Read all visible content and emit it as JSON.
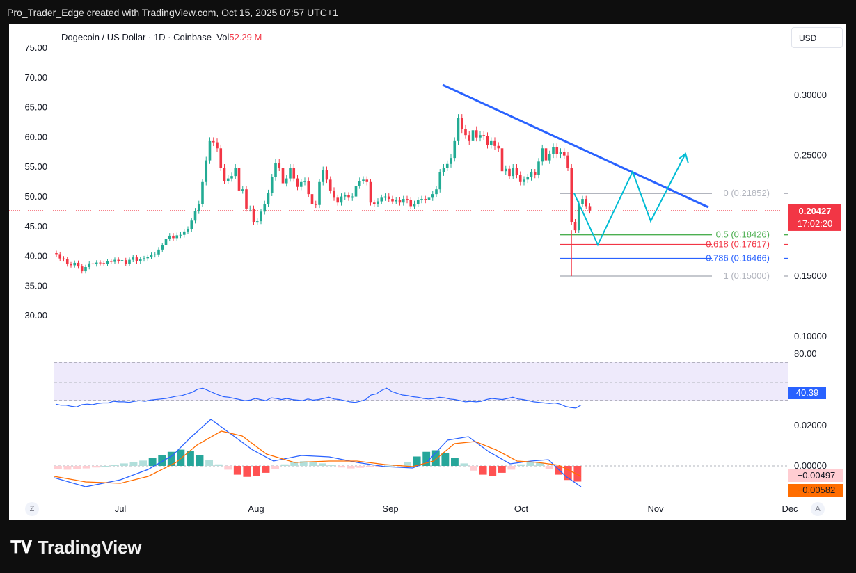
{
  "header": {
    "caption": "Pro_Trader_Edge created with TradingView.com, Oct 15, 2025 07:57 UTC+1"
  },
  "chart_title": {
    "symbol": "Dogecoin / US Dollar · 1D · Coinbase",
    "vol_label": "Vol",
    "vol_value": "52.29 M"
  },
  "currency_button": "USD",
  "left_axis": {
    "ticks": [
      "75.00",
      "70.00",
      "65.00",
      "60.00",
      "55.00",
      "50.00",
      "45.00",
      "40.00",
      "35.00",
      "30.00"
    ]
  },
  "right_axis": {
    "price_ticks": [
      "0.30000",
      "0.25000",
      "0.15000",
      "0.10000"
    ],
    "rsi_ticks": [
      "80.00"
    ],
    "macd_ticks": [
      "0.02000",
      "0.00000"
    ]
  },
  "time_axis": [
    "Jul",
    "Aug",
    "Sep",
    "Oct",
    "Nov",
    "Dec"
  ],
  "current_price": {
    "value": "0.20427",
    "countdown": "17:02:20"
  },
  "rsi_value": "40.39",
  "macd_values": [
    "−0.00497",
    "−0.00582"
  ],
  "fib_levels": [
    {
      "label": "0 (0.21852)",
      "value": 0.21852,
      "color": "#b2b5be"
    },
    {
      "label": "0.5 (0.18426)",
      "value": 0.18426,
      "color": "#4caf50"
    },
    {
      "label": "0.618 (0.17617)",
      "value": 0.17617,
      "color": "#f23645"
    },
    {
      "label": "0.786 (0.16466)",
      "value": 0.16466,
      "color": "#2962ff"
    },
    {
      "label": "1 (0.15000)",
      "value": 0.15,
      "color": "#b2b5be"
    }
  ],
  "colors": {
    "up": "#22ab94",
    "down": "#f23645",
    "trendline": "#2962ff",
    "projection": "#00bcd4",
    "rsi": "#2962ff",
    "macd_signal": "#ff6d00"
  },
  "icons": {
    "left_button": "Z",
    "right_button": "A",
    "brand": "TV"
  },
  "brand": "TradingView",
  "chart_data": [
    {
      "type": "candlestick",
      "title": "Dogecoin / US Dollar · 1D · Coinbase",
      "close": [
        0.1682,
        0.1646,
        0.164,
        0.1598,
        0.159,
        0.161,
        0.158,
        0.154,
        0.1575,
        0.1605,
        0.1598,
        0.1612,
        0.1608,
        0.16,
        0.1625,
        0.1618,
        0.1635,
        0.1625,
        0.1632,
        0.16,
        0.1635,
        0.1655,
        0.1622,
        0.164,
        0.1648,
        0.166,
        0.1675,
        0.168,
        0.172,
        0.1755,
        0.181,
        0.1835,
        0.1815,
        0.1838,
        0.1842,
        0.187,
        0.189,
        0.196,
        0.204,
        0.21,
        0.228,
        0.246,
        0.262,
        0.261,
        0.256,
        0.24,
        0.229,
        0.231,
        0.233,
        0.24,
        0.221,
        0.222,
        0.206,
        0.206,
        0.195,
        0.1955,
        0.2035,
        0.21,
        0.219,
        0.232,
        0.244,
        0.24,
        0.227,
        0.231,
        0.24,
        0.231,
        0.224,
        0.228,
        0.229,
        0.218,
        0.21,
        0.209,
        0.228,
        0.238,
        0.23,
        0.221,
        0.215,
        0.211,
        0.216,
        0.217,
        0.215,
        0.216,
        0.225,
        0.229,
        0.23,
        0.228,
        0.211,
        0.21,
        0.212,
        0.215,
        0.216,
        0.214,
        0.212,
        0.213,
        0.211,
        0.214,
        0.213,
        0.208,
        0.21,
        0.213,
        0.214,
        0.213,
        0.215,
        0.218,
        0.222,
        0.236,
        0.24,
        0.243,
        0.248,
        0.262,
        0.281,
        0.272,
        0.267,
        0.262,
        0.271,
        0.265,
        0.267,
        0.266,
        0.259,
        0.262,
        0.258,
        0.256,
        0.237,
        0.239,
        0.233,
        0.24,
        0.234,
        0.228,
        0.23,
        0.232,
        0.236,
        0.234,
        0.245,
        0.256,
        0.246,
        0.251,
        0.257,
        0.251,
        0.253,
        0.25,
        0.24,
        0.195,
        0.188,
        0.21,
        0.214,
        0.208,
        0.2043
      ],
      "trendline": [
        [
          0.288,
          "Sep 13"
        ],
        [
          0.25,
          "Oct 16"
        ]
      ],
      "ylim": [
        0.08,
        0.32
      ]
    },
    {
      "type": "line",
      "title": "RSI",
      "values": [
        42,
        40,
        40,
        38,
        37,
        41,
        42,
        41,
        43,
        44,
        44,
        47,
        46,
        46,
        45,
        47,
        48,
        47,
        49,
        50,
        51,
        52,
        54,
        56,
        57,
        60,
        63,
        68,
        70,
        66,
        62,
        58,
        55,
        54,
        52,
        50,
        48,
        49,
        52,
        50,
        48,
        53,
        52,
        50,
        52,
        50,
        49,
        48,
        51,
        49,
        50,
        52,
        54,
        51,
        50,
        48,
        46,
        45,
        47,
        50,
        58,
        60,
        66,
        70,
        64,
        61,
        58,
        57,
        55,
        54,
        52,
        51,
        52,
        54,
        53,
        51,
        50,
        48,
        46,
        47,
        46,
        47,
        50,
        52,
        51,
        50,
        52,
        54,
        51,
        50,
        48,
        46,
        45,
        44,
        43,
        44,
        42,
        38,
        36,
        35,
        40.4
      ],
      "ylim": [
        20,
        90
      ]
    },
    {
      "type": "bar",
      "title": "MACD histogram",
      "values": [
        -0.001,
        -0.0012,
        -0.001,
        -0.0008,
        -0.0005,
        0,
        0.0004,
        0.0008,
        0.0013,
        0.0017,
        0.0025,
        0.0035,
        0.0045,
        0.0052,
        0.0048,
        0.0035,
        0.002,
        0.0005,
        -0.0012,
        -0.0028,
        -0.0035,
        -0.0032,
        -0.0022,
        -0.001,
        0.0005,
        0.0012,
        0.0015,
        0.0012,
        0.0008,
        0.0002,
        -0.0005,
        -0.0008,
        -0.0006,
        -0.0003,
        -0.0001,
        0.0001,
        0.0004,
        0.0012,
        0.003,
        0.0045,
        0.005,
        0.004,
        0.0025,
        0.0008,
        -0.0015,
        -0.0028,
        -0.0032,
        -0.0022,
        -0.0012,
        0.0005,
        0.0012,
        0.001,
        -0.001,
        -0.0028,
        -0.0045,
        -0.005
      ]
    }
  ]
}
